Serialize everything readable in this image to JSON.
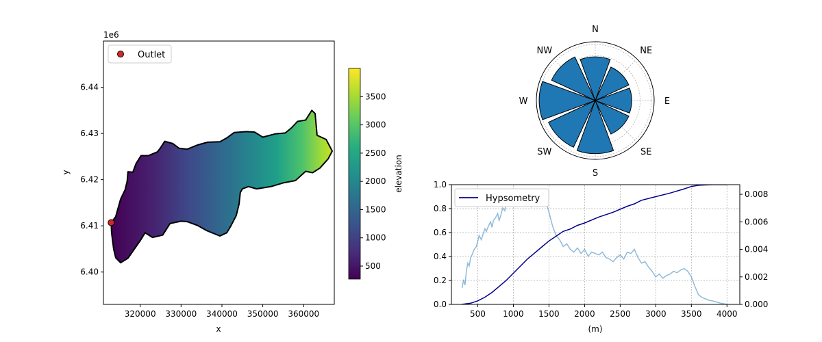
{
  "chart_data": [
    {
      "type": "heatmap",
      "kind": "catchment-elevation-map",
      "xlabel": "x",
      "ylabel": "y",
      "y_offset_label": "1e6",
      "xlim": [
        311000,
        367500
      ],
      "ylim": [
        6.393,
        6.45
      ],
      "x_ticks": [
        320000,
        330000,
        340000,
        350000,
        360000
      ],
      "x_tick_labels": [
        "320000",
        "330000",
        "340000",
        "350000",
        "360000"
      ],
      "y_ticks": [
        6.4,
        6.41,
        6.42,
        6.43,
        6.44
      ],
      "y_tick_labels": [
        "6.40",
        "6.41",
        "6.42",
        "6.43",
        "6.44"
      ],
      "colorbar": {
        "label": "elevation",
        "colormap": "viridis",
        "range": [
          270,
          4000
        ],
        "ticks": [
          500,
          1000,
          1500,
          2000,
          2500,
          3000,
          3500
        ],
        "tick_labels": [
          "500",
          "1000",
          "1500",
          "2000",
          "2500",
          "3000",
          "3500"
        ]
      },
      "outlet": {
        "x": 312900,
        "y": 6.4107,
        "color": "#d62728"
      },
      "legend": {
        "entries": [
          "Outlet"
        ],
        "placement": "upper left"
      },
      "outline": [
        [
          312900,
          6.4107
        ],
        [
          314000,
          6.412
        ],
        [
          315200,
          6.4158
        ],
        [
          316300,
          6.4178
        ],
        [
          316800,
          6.4196
        ],
        [
          317000,
          6.4217
        ],
        [
          318200,
          6.4216
        ],
        [
          319000,
          6.4235
        ],
        [
          320200,
          6.4252
        ],
        [
          322000,
          6.4252
        ],
        [
          324200,
          6.426
        ],
        [
          324900,
          6.4268
        ],
        [
          326000,
          6.4283
        ],
        [
          328000,
          6.4278
        ],
        [
          329500,
          6.4268
        ],
        [
          331500,
          6.4266
        ],
        [
          334000,
          6.4275
        ],
        [
          336500,
          6.4281
        ],
        [
          339500,
          6.4282
        ],
        [
          341300,
          6.4291
        ],
        [
          343000,
          6.4302
        ],
        [
          346000,
          6.4304
        ],
        [
          348000,
          6.4303
        ],
        [
          350000,
          6.4292
        ],
        [
          353000,
          6.4299
        ],
        [
          355500,
          6.4301
        ],
        [
          357000,
          6.4312
        ],
        [
          358500,
          6.4326
        ],
        [
          360500,
          6.4329
        ],
        [
          362000,
          6.435
        ],
        [
          362800,
          6.4343
        ],
        [
          363300,
          6.4296
        ],
        [
          365500,
          6.4287
        ],
        [
          367000,
          6.4262
        ],
        [
          366000,
          6.4245
        ],
        [
          364000,
          6.4225
        ],
        [
          362200,
          6.4215
        ],
        [
          360500,
          6.4218
        ],
        [
          358000,
          6.4198
        ],
        [
          355000,
          6.4193
        ],
        [
          352000,
          6.4185
        ],
        [
          348500,
          6.418
        ],
        [
          346500,
          6.4185
        ],
        [
          345000,
          6.418
        ],
        [
          344500,
          6.4172
        ],
        [
          344200,
          6.4147
        ],
        [
          343500,
          6.4122
        ],
        [
          342200,
          6.41
        ],
        [
          341200,
          6.4085
        ],
        [
          339500,
          6.4078
        ],
        [
          336200,
          6.409
        ],
        [
          334000,
          6.4101
        ],
        [
          331500,
          6.4109
        ],
        [
          330000,
          6.411
        ],
        [
          327300,
          6.4105
        ],
        [
          325500,
          6.408
        ],
        [
          323000,
          6.4075
        ],
        [
          321200,
          6.4085
        ],
        [
          320000,
          6.4068
        ],
        [
          317000,
          6.403
        ],
        [
          315200,
          6.402
        ],
        [
          314000,
          6.4031
        ],
        [
          313500,
          6.405
        ],
        [
          313000,
          6.4085
        ]
      ]
    },
    {
      "type": "bar",
      "kind": "polar-aspect-rose",
      "categories": [
        "N",
        "NE",
        "E",
        "SE",
        "S",
        "SW",
        "W",
        "NW"
      ],
      "direction_labels": [
        "N",
        "NE",
        "E",
        "SE",
        "S",
        "SW",
        "W",
        "NW"
      ],
      "values": [
        0.78,
        0.66,
        0.65,
        0.66,
        0.95,
        0.92,
        1.0,
        0.86
      ],
      "rlim": [
        0,
        1.05
      ],
      "grid": true,
      "bar_color": "#1f77b4"
    },
    {
      "type": "line",
      "xlabel": "(m)",
      "xlim": [
        130,
        4180
      ],
      "ylim": [
        0,
        1
      ],
      "y2lim": [
        0,
        0.0087
      ],
      "grid": true,
      "x_ticks": [
        500,
        1000,
        1500,
        2000,
        2500,
        3000,
        3500,
        4000
      ],
      "x_tick_labels": [
        "500",
        "1000",
        "1500",
        "2000",
        "2500",
        "3000",
        "3500",
        "4000"
      ],
      "y_ticks": [
        0,
        0.2,
        0.4,
        0.6,
        0.8,
        1.0
      ],
      "y_tick_labels": [
        "0.0",
        "0.2",
        "0.4",
        "0.6",
        "0.8",
        "1.0"
      ],
      "y2_ticks": [
        0,
        0.002,
        0.004,
        0.006,
        0.008
      ],
      "y2_tick_labels": [
        "0.000",
        "0.002",
        "0.004",
        "0.006",
        "0.008"
      ],
      "legend": {
        "entries": [
          "Hypsometry"
        ],
        "placement": "upper left"
      },
      "series": [
        {
          "name": "Hypsometry",
          "axis": "left",
          "color": "#00008b",
          "x": [
            270,
            400,
            500,
            600,
            700,
            800,
            900,
            1000,
            1100,
            1200,
            1300,
            1400,
            1500,
            1600,
            1700,
            1800,
            1900,
            2000,
            2200,
            2400,
            2600,
            2700,
            2800,
            3000,
            3200,
            3400,
            3500,
            3600,
            3700,
            3800,
            4000
          ],
          "y": [
            0.0,
            0.01,
            0.03,
            0.06,
            0.1,
            0.15,
            0.2,
            0.26,
            0.32,
            0.38,
            0.43,
            0.48,
            0.53,
            0.57,
            0.61,
            0.63,
            0.66,
            0.68,
            0.73,
            0.77,
            0.82,
            0.84,
            0.87,
            0.9,
            0.93,
            0.965,
            0.985,
            0.995,
            0.998,
            1.0,
            1.0
          ]
        },
        {
          "axis": "right",
          "color": "#1f77b4",
          "opacity": 0.5,
          "x": [
            280,
            300,
            320,
            340,
            360,
            380,
            400,
            420,
            450,
            480,
            500,
            520,
            550,
            580,
            600,
            620,
            650,
            680,
            700,
            720,
            750,
            780,
            800,
            820,
            850,
            880,
            900,
            920,
            950,
            980,
            1000,
            1020,
            1050,
            1080,
            1100,
            1150,
            1200,
            1250,
            1300,
            1350,
            1400,
            1450,
            1500,
            1550,
            1600,
            1650,
            1700,
            1750,
            1800,
            1850,
            1900,
            1950,
            2000,
            2050,
            2100,
            2150,
            2200,
            2250,
            2300,
            2350,
            2400,
            2450,
            2500,
            2550,
            2600,
            2650,
            2700,
            2750,
            2800,
            2850,
            2900,
            2950,
            3000,
            3050,
            3100,
            3150,
            3200,
            3250,
            3300,
            3350,
            3400,
            3450,
            3500,
            3550,
            3600,
            3650,
            3700,
            3750,
            3800,
            3850,
            3900,
            3950,
            4000
          ],
          "y": [
            0.0012,
            0.0018,
            0.0014,
            0.0024,
            0.003,
            0.0028,
            0.0034,
            0.0036,
            0.004,
            0.0042,
            0.0046,
            0.005,
            0.0047,
            0.0052,
            0.0055,
            0.0053,
            0.0057,
            0.006,
            0.0056,
            0.0061,
            0.0063,
            0.0066,
            0.0061,
            0.0064,
            0.007,
            0.0068,
            0.0074,
            0.0077,
            0.0081,
            0.0076,
            0.0079,
            0.0074,
            0.0077,
            0.0075,
            0.0079,
            0.0074,
            0.0076,
            0.0071,
            0.0079,
            0.0074,
            0.0073,
            0.0076,
            0.0067,
            0.0057,
            0.005,
            0.0047,
            0.0042,
            0.0044,
            0.004,
            0.0038,
            0.0041,
            0.0037,
            0.004,
            0.0035,
            0.0038,
            0.0037,
            0.0036,
            0.0038,
            0.0034,
            0.0033,
            0.0031,
            0.0034,
            0.0036,
            0.0033,
            0.0038,
            0.0037,
            0.004,
            0.0034,
            0.003,
            0.0031,
            0.0027,
            0.0024,
            0.002,
            0.0022,
            0.0019,
            0.0021,
            0.0022,
            0.0024,
            0.0023,
            0.0025,
            0.0026,
            0.0024,
            0.002,
            0.0013,
            0.0007,
            0.0005,
            0.0004,
            0.0003,
            0.00025,
            0.00018,
            0.0001,
            5e-05,
            0.0
          ]
        }
      ]
    }
  ]
}
